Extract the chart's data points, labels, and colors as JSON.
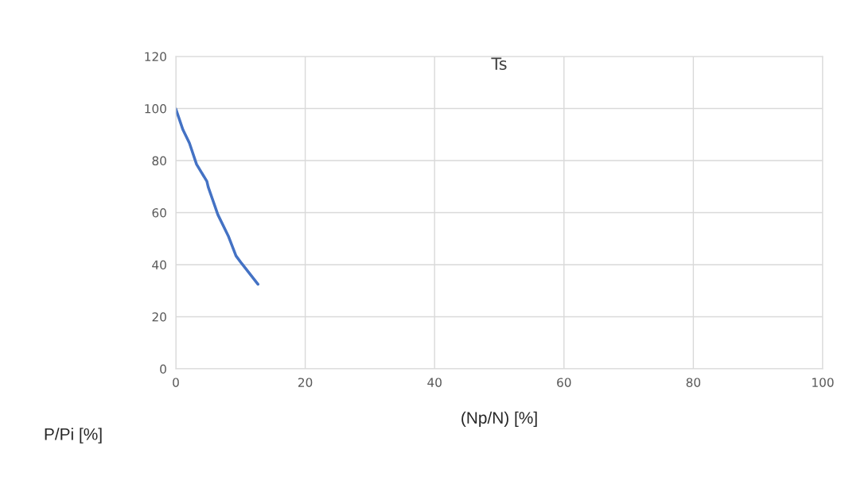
{
  "chart_data": {
    "type": "line",
    "title": "Ts",
    "xlabel": "(Np/N) [%]",
    "ylabel": "P/Pi [%]",
    "series": [
      {
        "color": "#4472c4",
        "x": [
          0,
          1.1,
          2.1,
          3.2,
          4.8,
          5.0,
          6.5,
          8.1,
          9.3,
          10.2,
          12.7
        ],
        "values": [
          99.8,
          91.8,
          86.7,
          78.6,
          72,
          69.9,
          59.2,
          51.1,
          43.4,
          40.4,
          32.5
        ]
      }
    ],
    "xlim": [
      0,
      100
    ],
    "xticks": [
      0,
      20,
      40,
      60,
      80,
      100
    ],
    "ylim": [
      0,
      120
    ],
    "yticks": [
      0,
      20,
      40,
      60,
      80,
      100,
      120
    ],
    "grid": true,
    "marker": "none",
    "line_style": "solid"
  }
}
